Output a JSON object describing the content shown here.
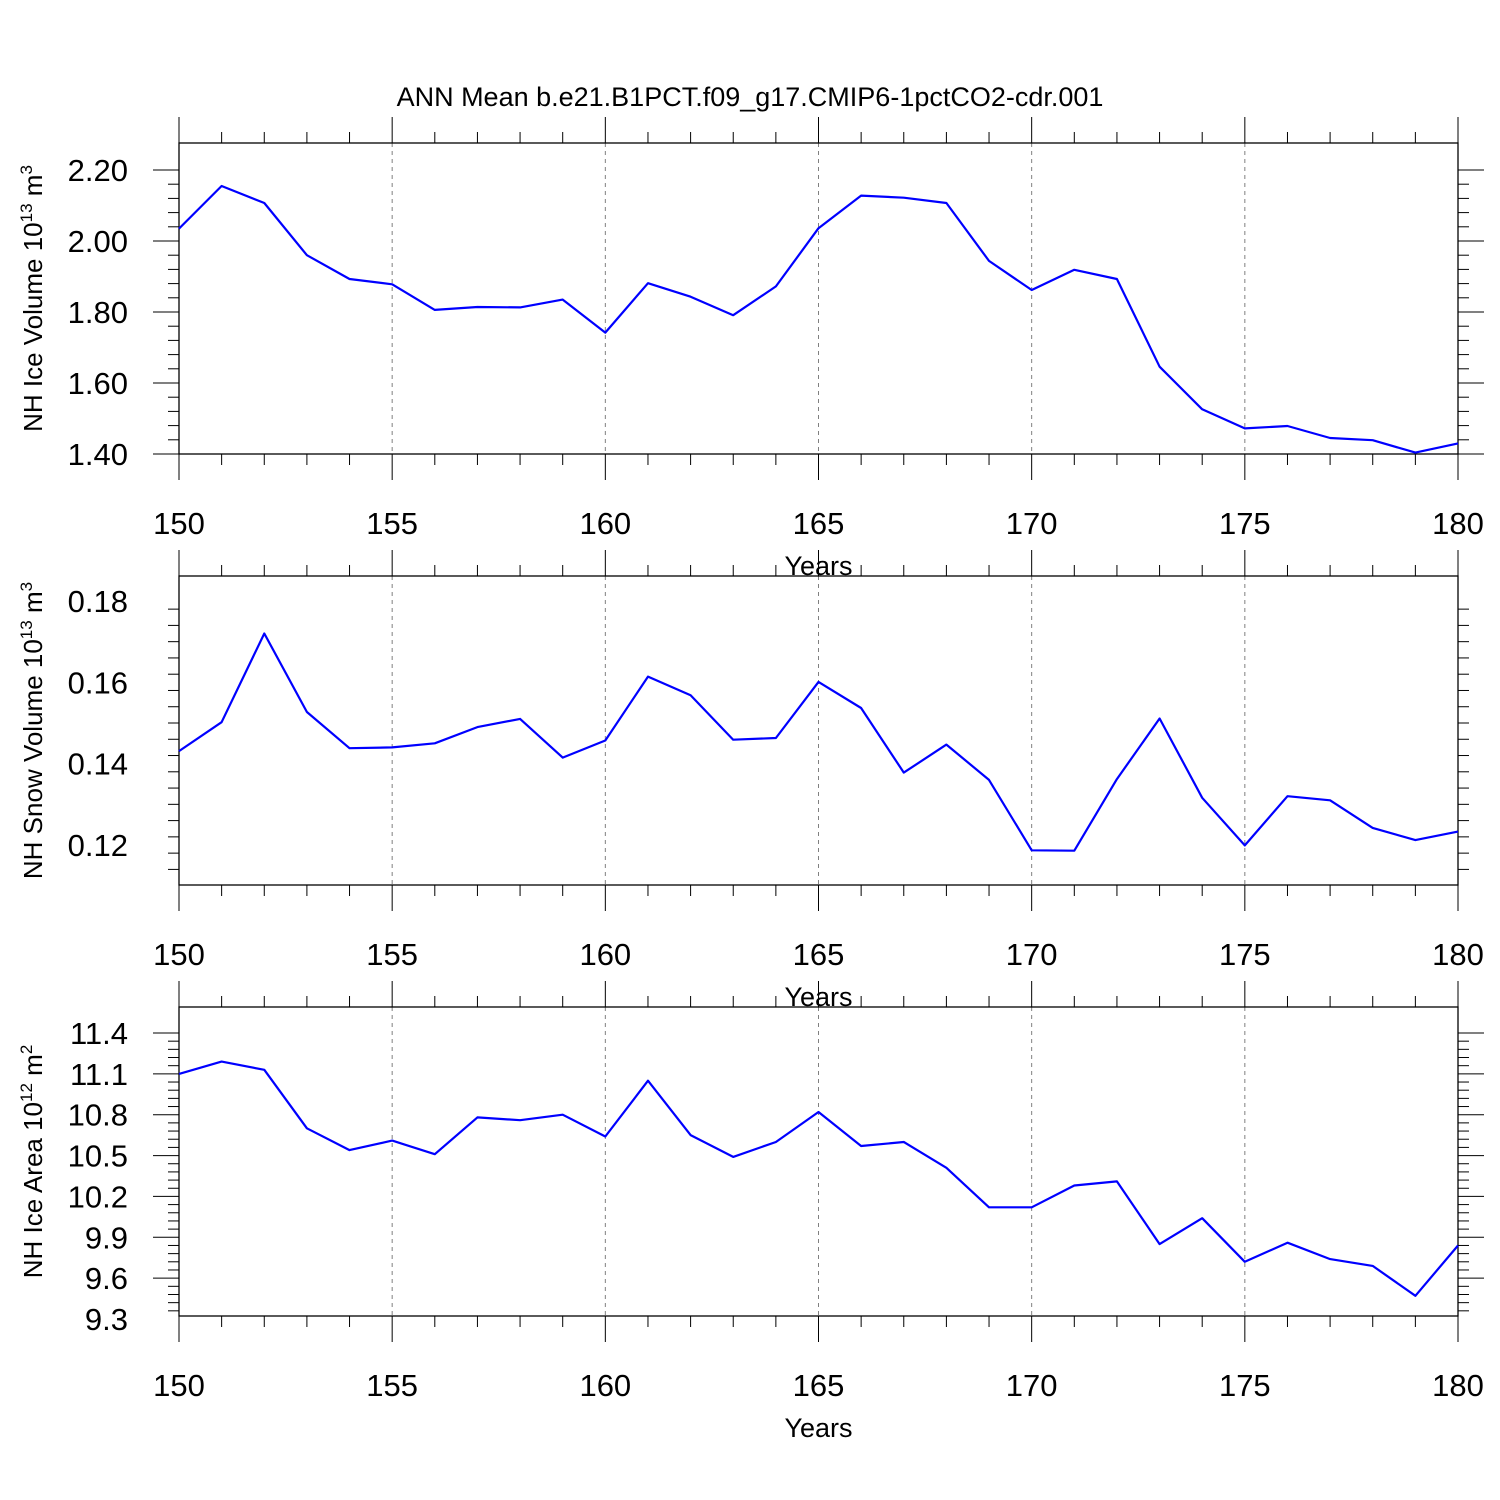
{
  "title": "ANN Mean b.e21.B1PCT.f09_g17.CMIP6-1pctCO2-cdr.001",
  "colors": {
    "series": "#0000ff",
    "axes": "#000000",
    "grid": "#808080"
  },
  "chart_data": [
    {
      "type": "line",
      "ylabel": "NH Ice Volume 10",
      "ylabel_exponent": "13",
      "ylabel_unit": " m",
      "ylabel_unit_exponent": "3",
      "xlabel": "Years",
      "xlim": [
        150,
        180
      ],
      "ylim": [
        1.4,
        2.2
      ],
      "xticks": [
        "150",
        "155",
        "160",
        "165",
        "170",
        "175",
        "180"
      ],
      "yticks": [
        "1.40",
        "1.60",
        "1.80",
        "2.00",
        "2.20"
      ],
      "x": [
        150,
        151,
        152,
        153,
        154,
        155,
        156,
        157,
        158,
        159,
        160,
        161,
        162,
        163,
        164,
        165,
        166,
        167,
        168,
        169,
        170,
        171,
        172,
        173,
        174,
        175,
        176,
        177,
        178,
        179,
        180
      ],
      "values": [
        2.035,
        2.155,
        2.107,
        1.96,
        1.893,
        1.878,
        1.806,
        1.814,
        1.813,
        1.835,
        1.742,
        1.881,
        1.843,
        1.791,
        1.872,
        2.036,
        2.128,
        2.122,
        2.107,
        1.944,
        1.862,
        1.919,
        1.893,
        1.646,
        1.526,
        1.472,
        1.479,
        1.445,
        1.439,
        1.404,
        1.43
      ],
      "grid": "vertical dashed at major x ticks"
    },
    {
      "type": "line",
      "ylabel": "NH Snow Volume 10",
      "ylabel_exponent": "13",
      "ylabel_unit": " m",
      "ylabel_unit_exponent": "3",
      "xlabel": "Years",
      "xlim": [
        150,
        180
      ],
      "ylim": [
        0.11,
        0.18
      ],
      "xticks": [
        "150",
        "155",
        "160",
        "165",
        "170",
        "175",
        "180"
      ],
      "yticks": [
        "0.12",
        "0.14",
        "0.16",
        "0.18"
      ],
      "x": [
        150,
        151,
        152,
        153,
        154,
        155,
        156,
        157,
        158,
        159,
        160,
        161,
        162,
        163,
        164,
        165,
        166,
        167,
        168,
        169,
        170,
        171,
        172,
        173,
        174,
        175,
        176,
        177,
        178,
        179,
        180
      ],
      "values": [
        0.1431,
        0.1502,
        0.172,
        0.1527,
        0.1438,
        0.144,
        0.145,
        0.149,
        0.151,
        0.1415,
        0.1457,
        0.1614,
        0.1568,
        0.1459,
        0.1463,
        0.1601,
        0.1537,
        0.1378,
        0.1447,
        0.136,
        0.1187,
        0.1186,
        0.1362,
        0.1511,
        0.1316,
        0.1199,
        0.132,
        0.131,
        0.1242,
        0.1212,
        0.1233
      ],
      "grid": "vertical dashed at major x ticks"
    },
    {
      "type": "line",
      "ylabel": "NH Ice Area 10",
      "ylabel_exponent": "12",
      "ylabel_unit": " m",
      "ylabel_unit_exponent": "2",
      "xlabel": "Years",
      "xlim": [
        150,
        180
      ],
      "ylim": [
        9.3,
        11.4
      ],
      "xticks": [
        "150",
        "155",
        "160",
        "165",
        "170",
        "175",
        "180"
      ],
      "yticks": [
        "9.3",
        "9.6",
        "9.9",
        "10.2",
        "10.5",
        "10.8",
        "11.1",
        "11.4"
      ],
      "x": [
        150,
        151,
        152,
        153,
        154,
        155,
        156,
        157,
        158,
        159,
        160,
        161,
        162,
        163,
        164,
        165,
        166,
        167,
        168,
        169,
        170,
        171,
        172,
        173,
        174,
        175,
        176,
        177,
        178,
        179,
        180
      ],
      "values": [
        11.1,
        11.19,
        11.13,
        10.7,
        10.54,
        10.61,
        10.51,
        10.78,
        10.76,
        10.8,
        10.64,
        11.05,
        10.65,
        10.49,
        10.6,
        10.82,
        10.57,
        10.6,
        10.41,
        10.12,
        10.12,
        10.28,
        10.31,
        9.85,
        10.04,
        9.72,
        9.86,
        9.74,
        9.69,
        9.47,
        9.84
      ],
      "grid": "vertical dashed at major x ticks"
    }
  ]
}
